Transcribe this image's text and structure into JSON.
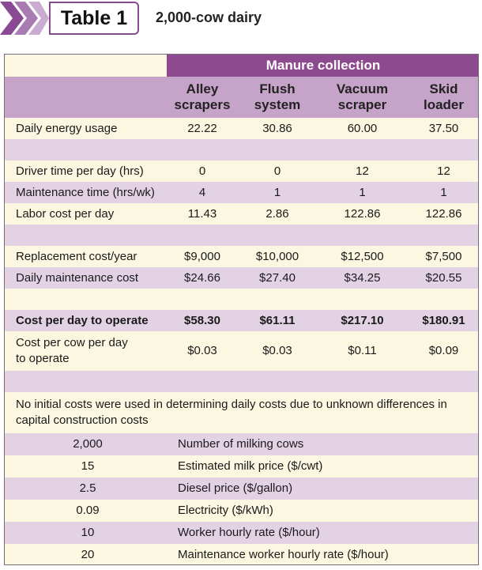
{
  "header": {
    "title": "Table 1",
    "subtitle": "2,000-cow dairy"
  },
  "table": {
    "group_header": "Manure collection",
    "columns": [
      [
        "Alley",
        "scrapers"
      ],
      [
        "Flush",
        "system"
      ],
      [
        "Vacuum",
        "scraper"
      ],
      [
        "Skid",
        "loader"
      ]
    ],
    "sections": [
      [
        {
          "label": "Daily energy usage",
          "values": [
            "22.22",
            "30.86",
            "60.00",
            "37.50"
          ]
        }
      ],
      [
        {
          "label": "Driver time per day (hrs)",
          "values": [
            "0",
            "0",
            "12",
            "12"
          ]
        },
        {
          "label": "Maintenance time (hrs/wk)",
          "values": [
            "4",
            "1",
            "1",
            "1"
          ]
        },
        {
          "label": "Labor cost per day",
          "values": [
            "11.43",
            "2.86",
            "122.86",
            "122.86"
          ]
        }
      ],
      [
        {
          "label": "Replacement cost/year",
          "values": [
            "$9,000",
            "$10,000",
            "$12,500",
            "$7,500"
          ]
        },
        {
          "label": "Daily maintenance cost",
          "values": [
            "$24.66",
            "$27.40",
            "$34.25",
            "$20.55"
          ]
        }
      ],
      [
        {
          "label": "Cost per day to operate",
          "values": [
            "$58.30",
            "$61.11",
            "$217.10",
            "$180.91"
          ],
          "bold": true
        },
        {
          "label": [
            "Cost per cow per day",
            "to operate"
          ],
          "values": [
            "$0.03",
            "$0.03",
            "$0.11",
            "$0.09"
          ]
        }
      ]
    ],
    "note": "No initial costs were used in determining daily costs due to unknown differences in capital construction costs",
    "parameters": [
      {
        "value": "2,000",
        "label": "Number of milking cows"
      },
      {
        "value": "15",
        "label": "Estimated milk price ($/cwt)"
      },
      {
        "value": "2.5",
        "label": "Diesel price ($/gallon)"
      },
      {
        "value": "0.09",
        "label": "Electricity ($/kWh)"
      },
      {
        "value": "10",
        "label": "Worker hourly rate ($/hour)"
      },
      {
        "value": "20",
        "label": "Maintenance worker hourly rate ($/hour)"
      }
    ]
  }
}
